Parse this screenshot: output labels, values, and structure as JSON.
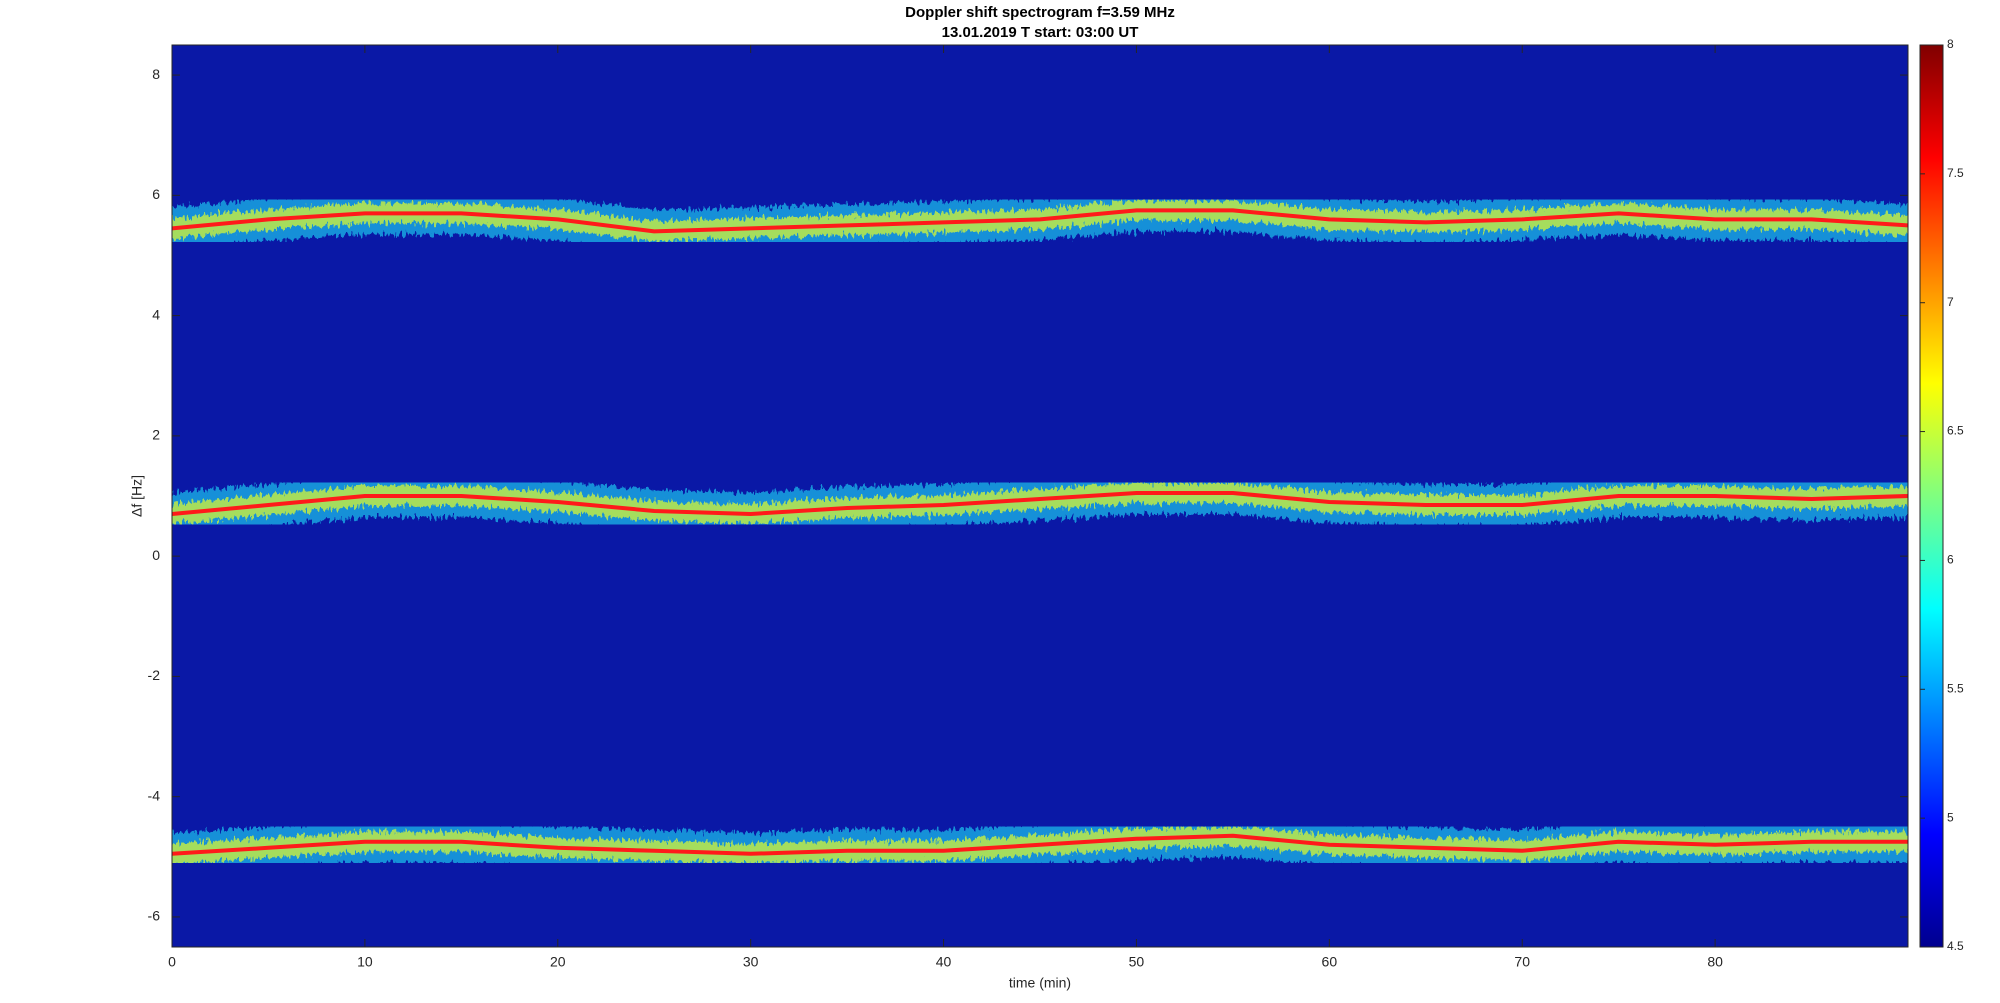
{
  "chart_data": {
    "type": "spectrogram",
    "title": "Doppler shift spectrogram f=3.59 MHz",
    "subtitle": "13.01.2019   T start: 03:00 UT",
    "x_label": "time (min)",
    "y_label": "Δf [Hz]",
    "x": [
      0,
      5,
      10,
      15,
      20,
      25,
      30,
      35,
      40,
      45,
      50,
      55,
      60,
      65,
      70,
      75,
      80,
      85,
      90
    ],
    "series": [
      {
        "color": "#ff1a1a",
        "values": [
          5.45,
          5.6,
          5.7,
          5.7,
          5.6,
          5.4,
          5.45,
          5.5,
          5.55,
          5.6,
          5.75,
          5.75,
          5.6,
          5.55,
          5.6,
          5.7,
          5.6,
          5.6,
          5.5
        ]
      },
      {
        "color": "#ff1a1a",
        "values": [
          0.7,
          0.85,
          1.0,
          1.0,
          0.9,
          0.75,
          0.7,
          0.8,
          0.85,
          0.95,
          1.05,
          1.05,
          0.9,
          0.85,
          0.85,
          1.0,
          1.0,
          0.95,
          1.0
        ]
      },
      {
        "color": "#ff1a1a",
        "values": [
          -4.95,
          -4.85,
          -4.75,
          -4.75,
          -4.85,
          -4.9,
          -4.95,
          -4.9,
          -4.9,
          -4.8,
          -4.7,
          -4.65,
          -4.8,
          -4.85,
          -4.9,
          -4.75,
          -4.8,
          -4.75,
          -4.75
        ]
      }
    ],
    "xlim": [
      0,
      90
    ],
    "xticks": [
      0,
      10,
      20,
      30,
      40,
      50,
      60,
      70,
      80
    ],
    "ylim": [
      -6.5,
      8.5
    ],
    "yticks": [
      -6,
      -4,
      -2,
      0,
      2,
      4,
      6,
      8
    ],
    "colormap": "jet",
    "clim": [
      4.5,
      8
    ],
    "cticks": [
      4.5,
      5,
      5.5,
      6,
      6.5,
      7,
      7.5,
      8
    ]
  }
}
